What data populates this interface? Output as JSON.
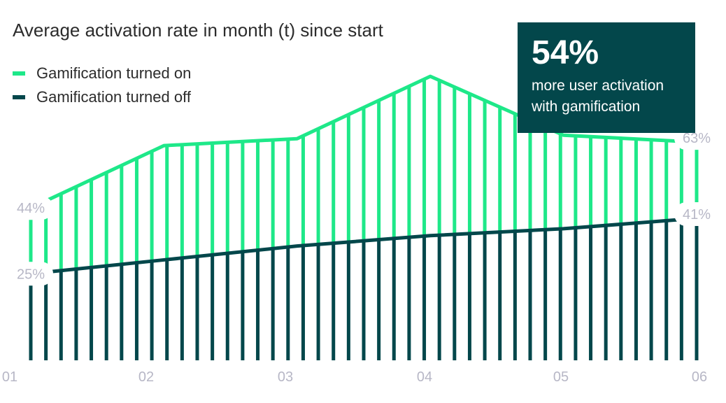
{
  "title": "Average activation rate in month (t) since start",
  "legend": [
    {
      "label": "Gamification turned on",
      "color": "#1ee889"
    },
    {
      "label": "Gamification turned off",
      "color": "#03474b"
    }
  ],
  "stat_card": {
    "value": "54%",
    "text_line1": "more user activation",
    "text_line2": "with gamification",
    "background": "#03474b"
  },
  "chart_data": {
    "type": "line",
    "title": "Average activation rate in month (t) since start",
    "x_ticks": [
      "01",
      "02",
      "03",
      "04",
      "05",
      "06"
    ],
    "x": [
      1,
      2,
      3,
      4,
      5,
      6
    ],
    "ylim": [
      0,
      100
    ],
    "grid": false,
    "legend_position": "top-left",
    "series": [
      {
        "name": "Gamification turned on",
        "color": "#1ee889",
        "values": [
          44,
          62,
          64,
          82,
          65,
          63
        ]
      },
      {
        "name": "Gamification turned off",
        "color": "#03474b",
        "values": [
          25,
          29,
          33,
          36,
          38,
          41
        ]
      }
    ],
    "annotations": [
      {
        "series": 0,
        "point": 0,
        "text": "44%"
      },
      {
        "series": 1,
        "point": 0,
        "text": "25%"
      },
      {
        "series": 0,
        "point": 5,
        "text": "63%"
      },
      {
        "series": 1,
        "point": 5,
        "text": "41%"
      }
    ]
  }
}
